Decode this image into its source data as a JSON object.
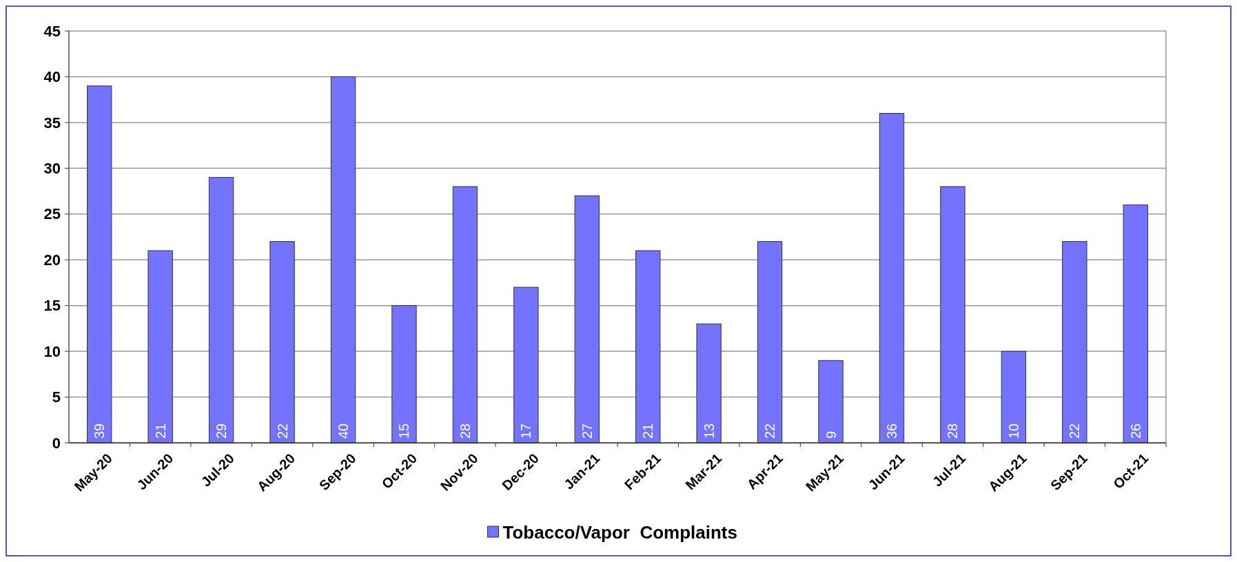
{
  "chart_data": {
    "type": "bar",
    "categories": [
      "May-20",
      "Jun-20",
      "Jul-20",
      "Aug-20",
      "Sep-20",
      "Oct-20",
      "Nov-20",
      "Dec-20",
      "Jan-21",
      "Feb-21",
      "Mar-21",
      "Apr-21",
      "May-21",
      "Jun-21",
      "Jul-21",
      "Aug-21",
      "Sep-21",
      "Oct-21"
    ],
    "series": [
      {
        "name": "Tobacco/Vapor  Complaints",
        "color": "#7373ff",
        "values": [
          39,
          21,
          29,
          22,
          40,
          15,
          28,
          17,
          27,
          21,
          13,
          22,
          9,
          36,
          28,
          10,
          22,
          26
        ]
      }
    ],
    "ylim": [
      0,
      45
    ],
    "yticks": [
      0,
      5,
      10,
      15,
      20,
      25,
      30,
      35,
      40,
      45
    ],
    "grid": "y",
    "legend": "bottom",
    "data_labels": true
  }
}
